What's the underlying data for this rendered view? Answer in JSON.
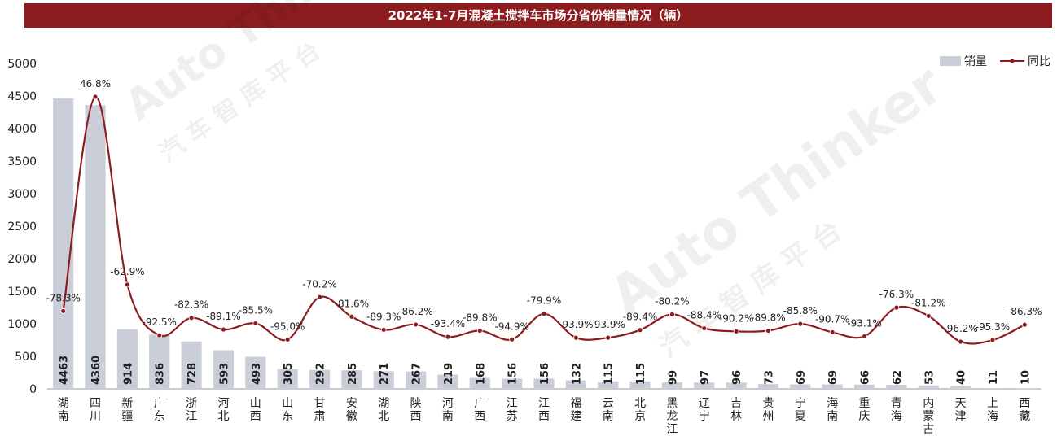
{
  "chart_data": {
    "type": "bar",
    "title": "2022年1-7月混凝土搅拌车市场分省份销量情况（辆）",
    "categories": [
      "湖南",
      "四川",
      "新疆",
      "广东",
      "浙江",
      "河北",
      "山西",
      "山东",
      "甘肃",
      "安徽",
      "湖北",
      "陕西",
      "河南",
      "广西",
      "江苏",
      "江西",
      "福建",
      "云南",
      "北京",
      "黑龙江",
      "辽宁",
      "吉林",
      "贵州",
      "宁夏",
      "海南",
      "重庆",
      "青海",
      "内蒙古",
      "天津",
      "上海",
      "西藏"
    ],
    "series": [
      {
        "name": "销量",
        "type": "bar",
        "values": [
          4463,
          4360,
          914,
          836,
          728,
          593,
          493,
          305,
          292,
          285,
          271,
          267,
          219,
          168,
          156,
          156,
          132,
          115,
          115,
          99,
          97,
          96,
          73,
          69,
          69,
          66,
          62,
          53,
          40,
          11,
          10
        ],
        "color": "#c9ced8"
      },
      {
        "name": "同比",
        "type": "line",
        "values": [
          -78.3,
          46.8,
          -62.9,
          -92.5,
          -82.3,
          -89.1,
          -85.5,
          -95.0,
          -70.2,
          -81.6,
          -89.3,
          -86.2,
          -93.4,
          -89.8,
          -94.9,
          -79.9,
          -93.9,
          -93.9,
          -89.4,
          -80.2,
          -88.4,
          -90.2,
          -89.8,
          -85.8,
          -90.7,
          -93.1,
          -76.3,
          -81.2,
          -96.2,
          -95.3,
          -86.3
        ],
        "labels": [
          "-78.3%",
          "46.8%",
          "-62.9%",
          "-92.5%",
          "-82.3%",
          "-89.1%",
          "-85.5%",
          "-95.0%",
          "-70.2%",
          "-81.6%",
          "-89.3%",
          "-86.2%",
          "-93.4%",
          "-89.8%",
          "-94.9%",
          "-79.9%",
          "-93.9%",
          "-93.9%",
          "-89.4%",
          "-80.2%",
          "-88.4%",
          "-90.2%",
          "-89.8%",
          "-85.8%",
          "-90.7%",
          "-93.1%",
          "-76.3%",
          "-81.2%",
          "-96.2%",
          "-95.3%",
          "-86.3%"
        ],
        "color": "#8c1c1e"
      }
    ],
    "yticks": [
      "0",
      "500",
      "1000",
      "1500",
      "2000",
      "2500",
      "3000",
      "3500",
      "4000",
      "4500",
      "5000"
    ],
    "ylim": [
      0,
      5000
    ],
    "legend_position": "top-right",
    "grid": false
  },
  "watermark": {
    "line1": "Auto Thinker",
    "line2": "汽 车 智 库 平 台"
  }
}
